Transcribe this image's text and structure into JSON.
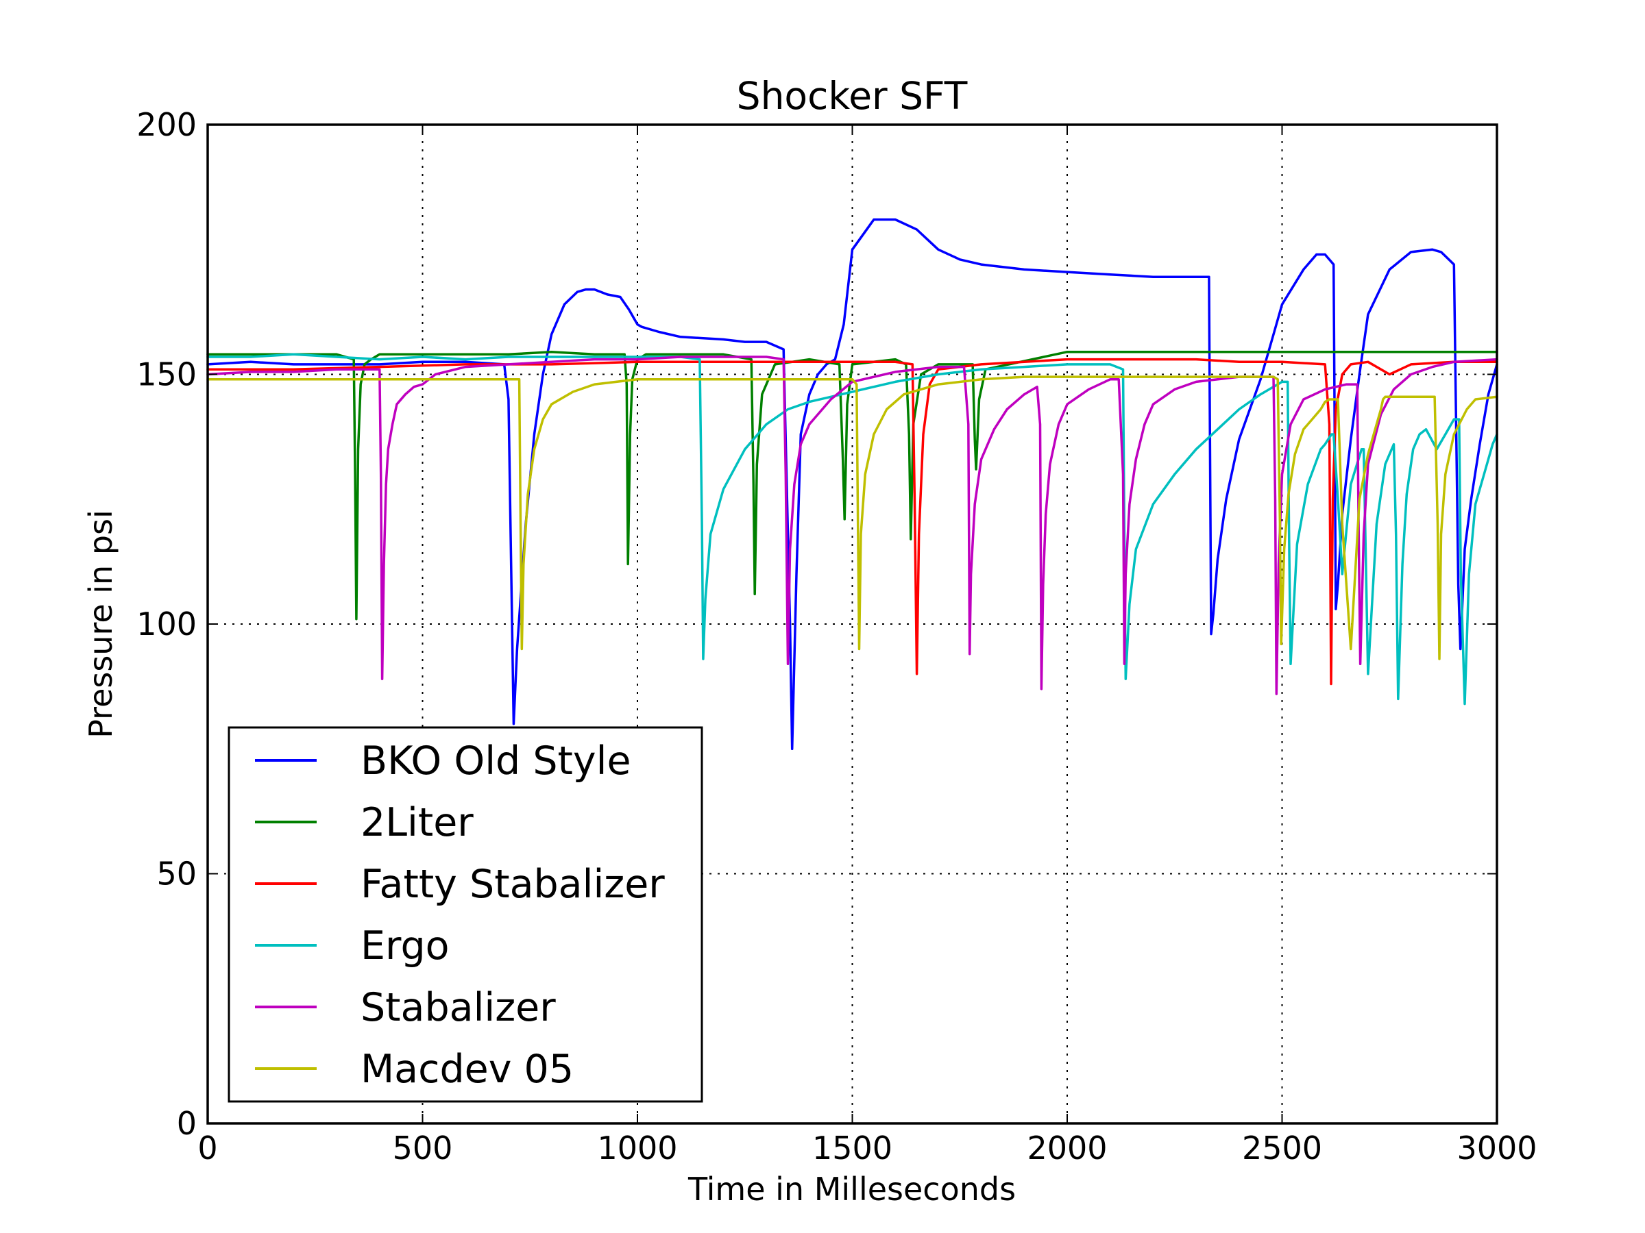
{
  "chart_data": {
    "type": "line",
    "title": "Shocker SFT",
    "xlabel": "Time in Milleseconds",
    "ylabel": "Pressure in psi",
    "xlim": [
      0,
      3000
    ],
    "ylim": [
      0,
      200
    ],
    "xticks": [
      0,
      500,
      1000,
      1500,
      2000,
      2500,
      3000
    ],
    "yticks": [
      0,
      50,
      100,
      150,
      200
    ],
    "grid": true,
    "legend_position": "lower-left",
    "series": [
      {
        "name": "BKO Old Style",
        "color": "#0000ff",
        "x": [
          0,
          100,
          200,
          300,
          400,
          500,
          600,
          690,
          700,
          705,
          712,
          720,
          740,
          760,
          780,
          800,
          830,
          860,
          880,
          900,
          930,
          960,
          980,
          1000,
          1010,
          1050,
          1100,
          1200,
          1250,
          1300,
          1340,
          1355,
          1360,
          1370,
          1380,
          1400,
          1420,
          1440,
          1460,
          1480,
          1500,
          1550,
          1600,
          1650,
          1700,
          1750,
          1800,
          1850,
          1900,
          2000,
          2100,
          2200,
          2300,
          2330,
          2335,
          2340,
          2350,
          2370,
          2400,
          2450,
          2480,
          2500,
          2550,
          2580,
          2600,
          2620,
          2625,
          2630,
          2640,
          2660,
          2680,
          2700,
          2750,
          2800,
          2850,
          2870,
          2900,
          2910,
          2915,
          2925,
          2940,
          2960,
          2980,
          3000
        ],
        "y": [
          152,
          152.5,
          152,
          152,
          152,
          152.5,
          152.5,
          152,
          145,
          118,
          80,
          95,
          120,
          138,
          150,
          158,
          164,
          166.5,
          167,
          167,
          166,
          165.5,
          163,
          160,
          159.5,
          158.5,
          157.5,
          157,
          156.5,
          156.5,
          155,
          100,
          75,
          110,
          138,
          146,
          150,
          152,
          153,
          160,
          175,
          181,
          181,
          179,
          175,
          173,
          172,
          171.5,
          171,
          170.5,
          170,
          169.5,
          169.5,
          169.5,
          98,
          102,
          113,
          125,
          137,
          149,
          158,
          164,
          171,
          174,
          174,
          172,
          103,
          108,
          122,
          137,
          150,
          162,
          171,
          174.5,
          175,
          174.5,
          172,
          108,
          95,
          115,
          125,
          136,
          146,
          152
        ]
      },
      {
        "name": "2Liter",
        "color": "#008000",
        "x": [
          0,
          100,
          200,
          300,
          340,
          343,
          346,
          350,
          356,
          365,
          380,
          400,
          500,
          600,
          700,
          800,
          900,
          970,
          975,
          978,
          983,
          988,
          1000,
          1020,
          1100,
          1200,
          1265,
          1270,
          1273,
          1278,
          1290,
          1320,
          1400,
          1470,
          1478,
          1482,
          1488,
          1500,
          1600,
          1625,
          1632,
          1636,
          1642,
          1660,
          1700,
          1780,
          1785,
          1788,
          1795,
          1810,
          2000,
          2200,
          2400,
          2600,
          2800,
          3000
        ],
        "y": [
          154,
          154,
          154,
          154,
          153,
          130,
          101,
          135,
          148,
          152,
          153,
          154,
          154,
          154,
          154,
          154.5,
          154,
          154,
          148,
          112,
          138,
          149,
          153,
          154,
          154,
          154,
          153,
          128,
          106,
          132,
          146,
          152,
          153,
          152,
          133,
          121,
          144,
          152,
          153,
          152,
          138,
          117,
          140,
          150,
          152,
          152,
          137,
          131,
          145,
          151,
          154.5,
          154.5,
          154.5,
          154.5,
          154.5,
          154.5
        ]
      },
      {
        "name": "Fatty Stabalizer",
        "color": "#ff0000",
        "x": [
          0,
          200,
          400,
          600,
          800,
          1000,
          1200,
          1400,
          1500,
          1600,
          1640,
          1645,
          1650,
          1655,
          1665,
          1680,
          1700,
          1800,
          1900,
          2000,
          2100,
          2200,
          2300,
          2400,
          2500,
          2600,
          2610,
          2614,
          2618,
          2625,
          2640,
          2660,
          2700,
          2750,
          2800,
          2900,
          3000
        ],
        "y": [
          151,
          151,
          151.5,
          152,
          152,
          152.5,
          152.5,
          152.5,
          152.5,
          152.5,
          152,
          125,
          90,
          118,
          138,
          148,
          151,
          152,
          152.5,
          153,
          153,
          153,
          153,
          152.5,
          152.5,
          152,
          140,
          88,
          125,
          143,
          150,
          152,
          152.5,
          150,
          152,
          152.5,
          152.5
        ]
      },
      {
        "name": "Ergo",
        "color": "#00bfbf",
        "x": [
          0,
          100,
          200,
          300,
          400,
          500,
          600,
          700,
          800,
          900,
          1000,
          1100,
          1145,
          1150,
          1153,
          1158,
          1170,
          1200,
          1250,
          1300,
          1350,
          1400,
          1450,
          1500,
          1550,
          1600,
          1700,
          1800,
          1900,
          2000,
          2100,
          2130,
          2133,
          2136,
          2145,
          2160,
          2200,
          2250,
          2300,
          2350,
          2400,
          2450,
          2500,
          2513,
          2516,
          2520,
          2535,
          2560,
          2590,
          2600,
          2615,
          2620,
          2630,
          2640,
          2660,
          2685,
          2690,
          2700,
          2720,
          2740,
          2760,
          2765,
          2770,
          2780,
          2790,
          2805,
          2820,
          2835,
          2860,
          2880,
          2900,
          2912,
          2916,
          2925,
          2935,
          2950,
          2970,
          2990,
          3000
        ],
        "y": [
          153.5,
          153.5,
          154,
          153.5,
          153,
          153.5,
          153,
          153.5,
          153.5,
          153.5,
          153.5,
          153.5,
          153,
          120,
          93,
          105,
          118,
          127,
          135,
          140,
          143,
          144.5,
          145.5,
          146.5,
          147.5,
          148.5,
          150,
          151,
          151.5,
          152,
          152,
          151,
          118,
          89,
          104,
          115,
          124,
          130,
          135,
          139,
          143,
          146,
          148.5,
          148.5,
          120,
          92,
          116,
          128,
          135,
          136,
          138,
          138,
          125,
          110,
          128,
          135,
          135,
          90,
          120,
          132,
          136,
          118,
          85,
          112,
          126,
          135,
          138,
          139,
          135,
          138,
          141,
          141,
          110,
          84,
          110,
          124,
          130,
          136,
          138
        ]
      },
      {
        "name": "Stabalizer",
        "color": "#bf00bf",
        "x": [
          0,
          100,
          200,
          300,
          400,
          403,
          406,
          410,
          415,
          420,
          430,
          440,
          460,
          480,
          500,
          530,
          600,
          700,
          800,
          900,
          1000,
          1100,
          1200,
          1300,
          1340,
          1345,
          1350,
          1355,
          1365,
          1380,
          1400,
          1450,
          1500,
          1600,
          1700,
          1760,
          1770,
          1773,
          1776,
          1785,
          1800,
          1830,
          1860,
          1900,
          1930,
          1937,
          1940,
          1944,
          1950,
          1960,
          1980,
          2000,
          2050,
          2100,
          2120,
          2130,
          2133,
          2136,
          2145,
          2160,
          2180,
          2200,
          2250,
          2300,
          2350,
          2400,
          2450,
          2480,
          2484,
          2487,
          2492,
          2500,
          2520,
          2550,
          2600,
          2650,
          2675,
          2678,
          2682,
          2690,
          2700,
          2730,
          2760,
          2800,
          2850,
          2900,
          3000
        ],
        "y": [
          150,
          150.5,
          150.5,
          151,
          151,
          130,
          89,
          112,
          128,
          135,
          140,
          144,
          146,
          147.5,
          148,
          150,
          151.5,
          152,
          152.5,
          153,
          153,
          153.5,
          153.5,
          153.5,
          153,
          130,
          92,
          115,
          128,
          136,
          140,
          145,
          148.5,
          150.5,
          151.5,
          151.5,
          140,
          94,
          110,
          124,
          133,
          139,
          143,
          146,
          147.5,
          140,
          87,
          108,
          122,
          132,
          140,
          144,
          147,
          149,
          149,
          130,
          92,
          110,
          124,
          133,
          140,
          144,
          147,
          148.5,
          149,
          149.5,
          149.5,
          149.5,
          125,
          86,
          112,
          130,
          140,
          145,
          147,
          148,
          148,
          120,
          92,
          118,
          132,
          142,
          147,
          150,
          151.5,
          152.5,
          153
        ]
      },
      {
        "name": "Macdev 05",
        "color": "#bfbf00",
        "x": [
          0,
          100,
          200,
          300,
          400,
          500,
          600,
          700,
          725,
          728,
          731,
          735,
          745,
          760,
          780,
          800,
          850,
          900,
          1000,
          1100,
          1200,
          1300,
          1400,
          1500,
          1510,
          1513,
          1516,
          1520,
          1530,
          1550,
          1580,
          1620,
          1700,
          1800,
          1900,
          2000,
          2100,
          2200,
          2300,
          2400,
          2480,
          2490,
          2495,
          2498,
          2505,
          2515,
          2530,
          2550,
          2570,
          2590,
          2600,
          2610,
          2620,
          2630,
          2640,
          2660,
          2680,
          2700,
          2720,
          2730,
          2735,
          2740,
          2760,
          2780,
          2800,
          2820,
          2840,
          2855,
          2862,
          2866,
          2870,
          2880,
          2900,
          2930,
          2950,
          3000
        ],
        "y": [
          149,
          149,
          149,
          149,
          149,
          149,
          149,
          149,
          149,
          120,
          95,
          112,
          126,
          135,
          141,
          144,
          146.5,
          148,
          149,
          149,
          149,
          149,
          149,
          149,
          148,
          120,
          95,
          118,
          130,
          138,
          143,
          146,
          148,
          149,
          149.5,
          149.5,
          149.5,
          149.5,
          149.5,
          149.5,
          149.5,
          149,
          120,
          96,
          115,
          126,
          134,
          139,
          141,
          143,
          144.5,
          145,
          145,
          145,
          120,
          95,
          125,
          134,
          140,
          143,
          145,
          145.5,
          145.5,
          145.5,
          145.5,
          145.5,
          145.5,
          145.5,
          120,
          93,
          118,
          130,
          138,
          143,
          145,
          145.5
        ]
      }
    ]
  }
}
